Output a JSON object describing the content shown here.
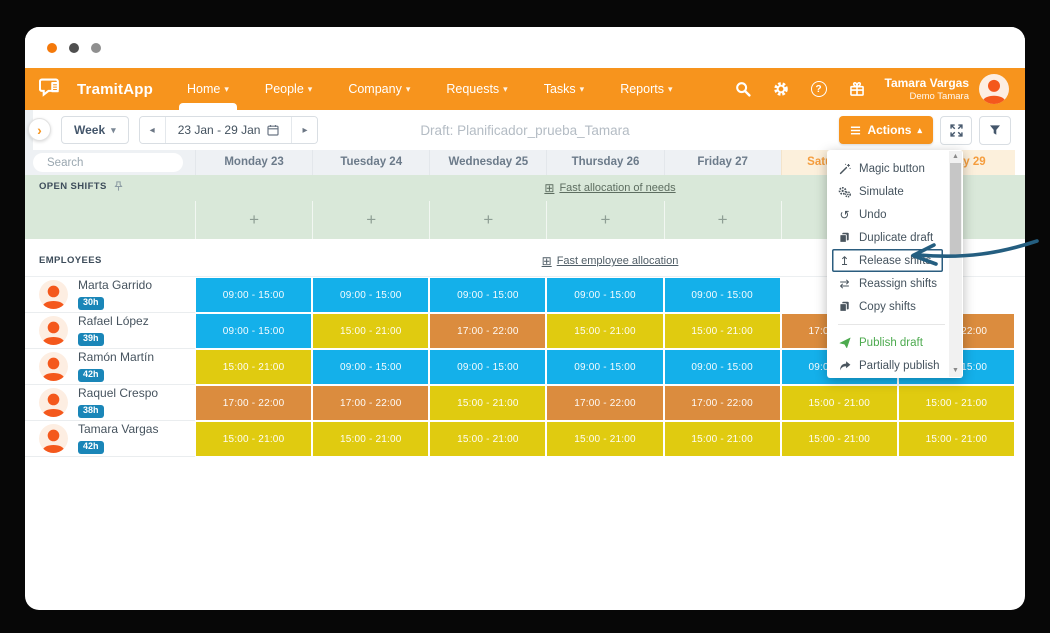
{
  "navbar": {
    "brand": "TramitApp",
    "items": [
      {
        "label": "Home",
        "active": true
      },
      {
        "label": "People",
        "active": false
      },
      {
        "label": "Company",
        "active": false
      },
      {
        "label": "Requests",
        "active": false
      },
      {
        "label": "Tasks",
        "active": false
      },
      {
        "label": "Reports",
        "active": false
      }
    ],
    "icons": [
      "search-icon",
      "settings-icon",
      "help-icon",
      "gift-icon"
    ],
    "user": {
      "name": "Tamara Vargas",
      "subtitle": "Demo Tamara"
    }
  },
  "toolbar": {
    "view_label": "Week",
    "date_range": "23 Jan - 29 Jan",
    "title": "Draft: Planificador_prueba_Tamara",
    "actions_label": "Actions"
  },
  "schedule": {
    "search_placeholder": "Search",
    "days": [
      {
        "label": "Monday 23",
        "weekend": false
      },
      {
        "label": "Tuesday 24",
        "weekend": false
      },
      {
        "label": "Wednesday 25",
        "weekend": false
      },
      {
        "label": "Thursday 26",
        "weekend": false
      },
      {
        "label": "Friday 27",
        "weekend": false
      },
      {
        "label": "Saturday 28",
        "weekend": true
      },
      {
        "label": "Sunday 29",
        "weekend": true
      }
    ],
    "open_shifts": {
      "label": "OPEN SHIFTS",
      "link": "Fast allocation of needs",
      "add_label": "+"
    },
    "employees_label": "EMPLOYEES",
    "employees_link": "Fast employee allocation",
    "employees": [
      {
        "name": "Marta Garrido",
        "hours": "30h",
        "shifts": [
          {
            "time": "09:00 - 15:00",
            "color": "blue"
          },
          {
            "time": "09:00 - 15:00",
            "color": "blue"
          },
          {
            "time": "09:00 - 15:00",
            "color": "blue"
          },
          {
            "time": "09:00 - 15:00",
            "color": "blue"
          },
          {
            "time": "09:00 - 15:00",
            "color": "blue"
          },
          null,
          null
        ]
      },
      {
        "name": "Rafael López",
        "hours": "39h",
        "shifts": [
          {
            "time": "09:00 - 15:00",
            "color": "blue"
          },
          {
            "time": "15:00 - 21:00",
            "color": "yellow"
          },
          {
            "time": "17:00 - 22:00",
            "color": "orange"
          },
          {
            "time": "15:00 - 21:00",
            "color": "yellow"
          },
          {
            "time": "15:00 - 21:00",
            "color": "yellow"
          },
          {
            "time": "17:00 - 22:00",
            "color": "orange"
          },
          {
            "time": "17:00 - 22:00",
            "color": "orange"
          }
        ]
      },
      {
        "name": "Ramón Martín",
        "hours": "42h",
        "shifts": [
          {
            "time": "15:00 - 21:00",
            "color": "yellow"
          },
          {
            "time": "09:00 - 15:00",
            "color": "blue"
          },
          {
            "time": "09:00 - 15:00",
            "color": "blue"
          },
          {
            "time": "09:00 - 15:00",
            "color": "blue"
          },
          {
            "time": "09:00 - 15:00",
            "color": "blue"
          },
          {
            "time": "09:00 - 15:00",
            "color": "blue"
          },
          {
            "time": "09:00 - 15:00",
            "color": "blue"
          }
        ]
      },
      {
        "name": "Raquel Crespo",
        "hours": "38h",
        "shifts": [
          {
            "time": "17:00 - 22:00",
            "color": "orange"
          },
          {
            "time": "17:00 - 22:00",
            "color": "orange"
          },
          {
            "time": "15:00 - 21:00",
            "color": "yellow"
          },
          {
            "time": "17:00 - 22:00",
            "color": "orange"
          },
          {
            "time": "17:00 - 22:00",
            "color": "orange"
          },
          {
            "time": "15:00 - 21:00",
            "color": "yellow"
          },
          {
            "time": "15:00 - 21:00",
            "color": "yellow"
          }
        ]
      },
      {
        "name": "Tamara Vargas",
        "hours": "42h",
        "shifts": [
          {
            "time": "15:00 - 21:00",
            "color": "yellow"
          },
          {
            "time": "15:00 - 21:00",
            "color": "yellow"
          },
          {
            "time": "15:00 - 21:00",
            "color": "yellow"
          },
          {
            "time": "15:00 - 21:00",
            "color": "yellow"
          },
          {
            "time": "15:00 - 21:00",
            "color": "yellow"
          },
          {
            "time": "15:00 - 21:00",
            "color": "yellow"
          },
          {
            "time": "15:00 - 21:00",
            "color": "yellow"
          }
        ]
      }
    ]
  },
  "menu": {
    "items": [
      {
        "label": "Magic button",
        "icon": "magic-wand-icon"
      },
      {
        "label": "Simulate",
        "icon": "gears-icon"
      },
      {
        "label": "Undo",
        "icon": "undo-icon"
      },
      {
        "label": "Duplicate draft",
        "icon": "copy-icon"
      },
      {
        "label": "Release shifts",
        "icon": "release-icon",
        "highlighted": true
      },
      {
        "label": "Reassign shifts",
        "icon": "swap-icon"
      },
      {
        "label": "Copy shifts",
        "icon": "copy-icon"
      },
      {
        "label": "Publish draft",
        "icon": "publish-icon",
        "color": "#4caa4e",
        "divider_before": true
      },
      {
        "label": "Partially publish",
        "icon": "share-icon"
      }
    ]
  },
  "colors": {
    "accent": "#f7941d",
    "shift_blue": "#14b0ea",
    "shift_yellow": "#e0cb10",
    "shift_orange": "#db8c3e",
    "badge": "#1a86b8",
    "publish_green": "#4caa4e",
    "annotation": "#245e80"
  }
}
